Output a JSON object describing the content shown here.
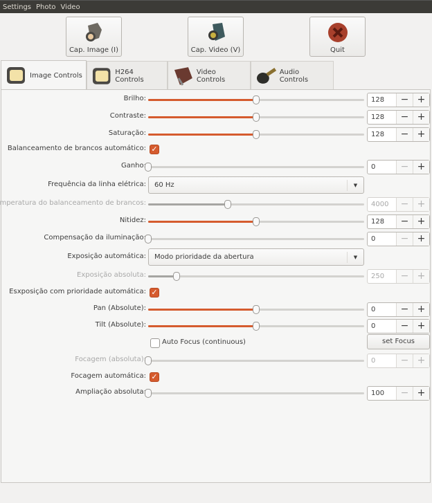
{
  "menu": [
    "Settings",
    "Photo",
    "Video"
  ],
  "toolbar": {
    "cap_image": "Cap. Image (I)",
    "cap_video": "Cap. Video (V)",
    "quit": "Quit"
  },
  "tabs": [
    {
      "label": "Image Controls",
      "active": true
    },
    {
      "label": "H264 Controls"
    },
    {
      "label": "Video Controls"
    },
    {
      "label": "Audio Controls"
    }
  ],
  "colors": {
    "accent": "#d55b2e",
    "menubar": "#3c3b37"
  },
  "controls": [
    {
      "type": "slider",
      "label": "Brilho:",
      "value": "128",
      "percent": 50
    },
    {
      "type": "slider",
      "label": "Contraste:",
      "value": "128",
      "percent": 50
    },
    {
      "type": "slider",
      "label": "Saturação:",
      "value": "128",
      "percent": 50
    },
    {
      "type": "check",
      "label": "Balanceamento de brancos automático:",
      "checked": true
    },
    {
      "type": "slider",
      "label": "Ganho:",
      "value": "0",
      "percent": 0,
      "at_min": true
    },
    {
      "type": "combo",
      "label": "Frequência da linha elétrica:",
      "value": "60 Hz"
    },
    {
      "type": "slider",
      "label": "Temperatura do balanceamento de brancos:",
      "value": "4000",
      "percent": 37,
      "disabled": true
    },
    {
      "type": "slider",
      "label": "Nitidez:",
      "value": "128",
      "percent": 50
    },
    {
      "type": "slider",
      "label": "Compensação da iluminação:",
      "value": "0",
      "percent": 0,
      "at_min": true
    },
    {
      "type": "combo",
      "label": "Exposição automática:",
      "value": "Modo prioridade da abertura"
    },
    {
      "type": "slider",
      "label": "Exposição absoluta:",
      "value": "250",
      "percent": 13,
      "disabled": true
    },
    {
      "type": "check",
      "label": "Esxposição com prioridade automática:",
      "checked": true
    },
    {
      "type": "slider",
      "label": "Pan (Absolute):",
      "value": "0",
      "percent": 50
    },
    {
      "type": "slider",
      "label": "Tilt (Absolute):",
      "value": "0",
      "percent": 50
    },
    {
      "type": "autofocus",
      "label": "Auto Focus (continuous)",
      "checked": false,
      "button": "set Focus"
    },
    {
      "type": "slider",
      "label": "Focagem (absoluta):",
      "value": "0",
      "percent": 0,
      "disabled": true
    },
    {
      "type": "check",
      "label": "Focagem automática:",
      "checked": true
    },
    {
      "type": "slider",
      "label": "Ampliação absoluta:",
      "value": "100",
      "percent": 0,
      "at_min": true
    }
  ],
  "spin": {
    "minus": "−",
    "plus": "+"
  }
}
